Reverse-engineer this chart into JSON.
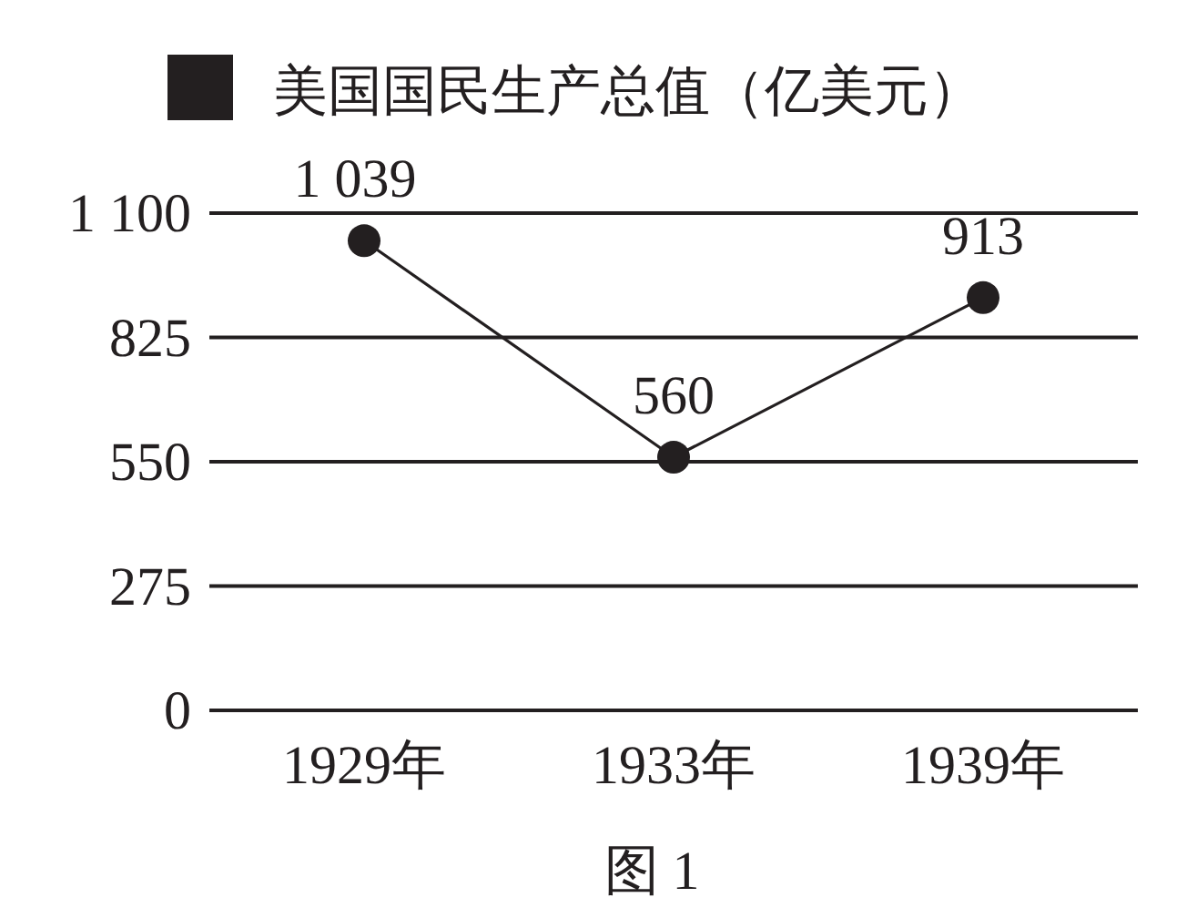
{
  "chart_data": {
    "type": "line",
    "categories": [
      "1929年",
      "1933年",
      "1939年"
    ],
    "series": [
      {
        "name": "美国国民生产总值（亿美元）",
        "color": "#231f20",
        "values": [
          1039,
          560,
          913
        ],
        "value_labels": [
          "1 039",
          "560",
          "913"
        ]
      }
    ],
    "ylim": [
      0,
      1100
    ],
    "yticks": [
      0,
      275,
      550,
      825,
      {
        "value": 1100,
        "label": "1 100"
      }
    ],
    "grid": "y",
    "legend": "top",
    "marker": "circle",
    "line_style": "solid",
    "annotations": [
      "图 1"
    ]
  }
}
